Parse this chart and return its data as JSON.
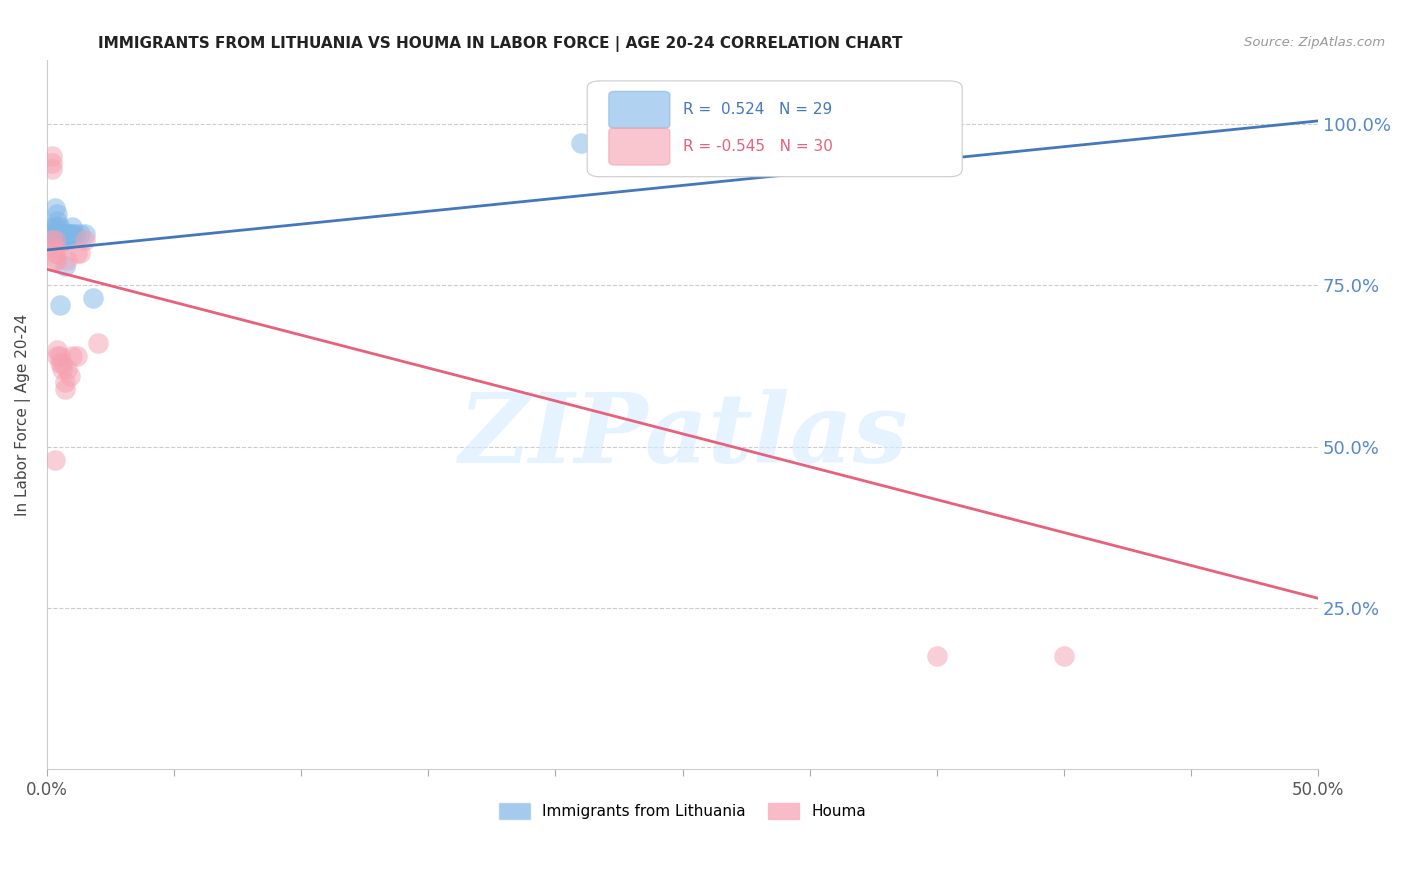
{
  "title": "IMMIGRANTS FROM LITHUANIA VS HOUMA IN LABOR FORCE | AGE 20-24 CORRELATION CHART",
  "source": "Source: ZipAtlas.com",
  "ylabel": "In Labor Force | Age 20-24",
  "xlim": [
    0.0,
    0.5
  ],
  "ylim": [
    0.0,
    1.1
  ],
  "xticks": [
    0.0,
    0.05,
    0.1,
    0.15,
    0.2,
    0.25,
    0.3,
    0.35,
    0.4,
    0.45,
    0.5
  ],
  "xtick_labels_left": "0.0%",
  "xtick_labels_right": "50.0%",
  "yticks_right": [
    0.25,
    0.5,
    0.75,
    1.0
  ],
  "ytick_labels_right": [
    "25.0%",
    "50.0%",
    "75.0%",
    "100.0%"
  ],
  "legend1_label": "Immigrants from Lithuania",
  "legend2_label": "Houma",
  "R_blue": 0.524,
  "N_blue": 29,
  "R_pink": -0.545,
  "N_pink": 30,
  "blue_color": "#7EB6E8",
  "pink_color": "#F5A0B0",
  "blue_line_color": "#4477BB",
  "pink_line_color": "#E8607A",
  "right_label_color": "#5588CC",
  "watermark_text": "ZIPatlas",
  "blue_x": [
    0.002,
    0.002,
    0.002,
    0.003,
    0.003,
    0.003,
    0.004,
    0.004,
    0.004,
    0.004,
    0.005,
    0.005,
    0.005,
    0.006,
    0.006,
    0.007,
    0.007,
    0.007,
    0.008,
    0.008,
    0.009,
    0.01,
    0.01,
    0.011,
    0.013,
    0.015,
    0.018,
    0.003,
    0.21
  ],
  "blue_y": [
    0.82,
    0.83,
    0.84,
    0.82,
    0.83,
    0.84,
    0.83,
    0.84,
    0.85,
    0.86,
    0.83,
    0.84,
    0.72,
    0.82,
    0.83,
    0.82,
    0.83,
    0.78,
    0.83,
    0.82,
    0.83,
    0.83,
    0.84,
    0.83,
    0.83,
    0.83,
    0.73,
    0.87,
    0.97
  ],
  "pink_x": [
    0.002,
    0.002,
    0.002,
    0.002,
    0.003,
    0.003,
    0.003,
    0.003,
    0.004,
    0.004,
    0.004,
    0.004,
    0.005,
    0.005,
    0.006,
    0.006,
    0.007,
    0.007,
    0.008,
    0.008,
    0.009,
    0.01,
    0.012,
    0.012,
    0.013,
    0.015,
    0.02,
    0.35,
    0.4,
    0.003
  ],
  "pink_y": [
    0.93,
    0.94,
    0.95,
    0.82,
    0.79,
    0.8,
    0.81,
    0.82,
    0.79,
    0.8,
    0.64,
    0.65,
    0.63,
    0.64,
    0.62,
    0.63,
    0.59,
    0.6,
    0.62,
    0.79,
    0.61,
    0.64,
    0.8,
    0.64,
    0.8,
    0.82,
    0.66,
    0.175,
    0.175,
    0.48
  ],
  "blue_trendline_x": [
    0.0,
    0.5
  ],
  "blue_trendline_y": [
    0.805,
    1.005
  ],
  "pink_trendline_x": [
    0.0,
    0.5
  ],
  "pink_trendline_y": [
    0.775,
    0.265
  ]
}
